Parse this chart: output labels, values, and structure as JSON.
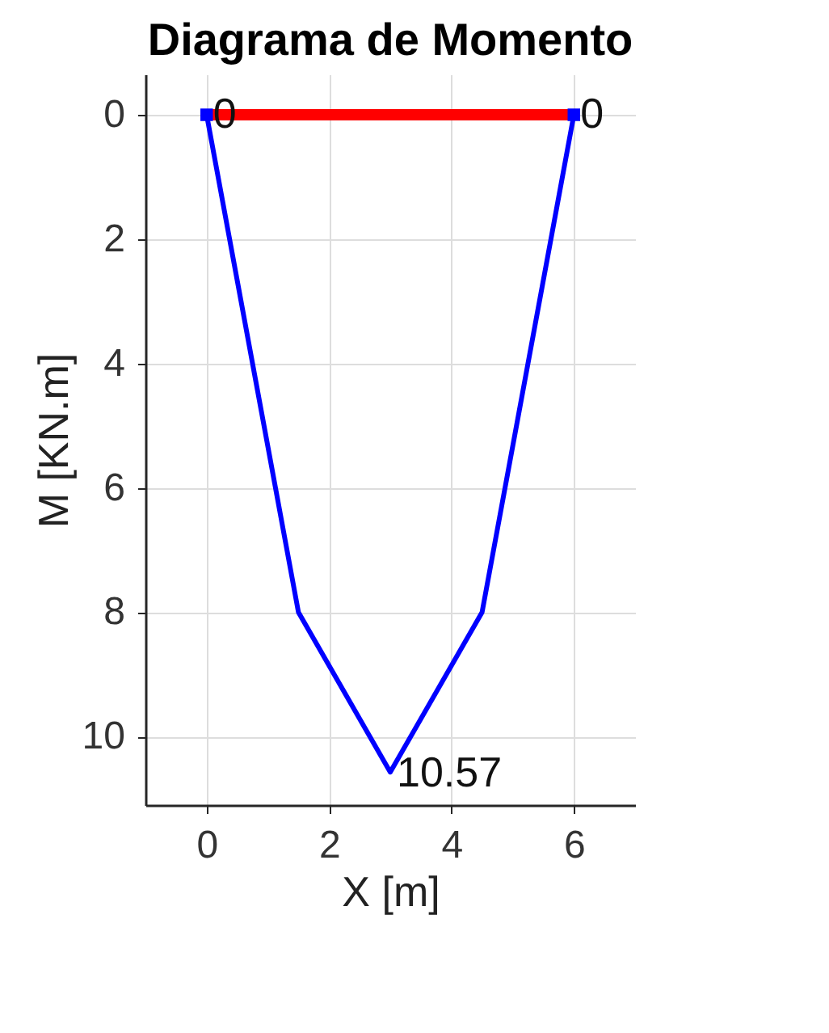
{
  "chart_data": {
    "type": "line",
    "title": "Diagrama de Momento",
    "xlabel": "X [m]",
    "ylabel": "M [KN.m]",
    "xlim": [
      -1,
      7
    ],
    "xticks": [
      0,
      2,
      4,
      6
    ],
    "ylim": [
      11.1,
      -0.65
    ],
    "yticks": [
      0,
      2,
      4,
      6,
      8,
      10
    ],
    "grid": true,
    "legend": false,
    "line_style": "solid",
    "marker": "none",
    "series": [
      {
        "color": "#ff0000",
        "x": [
          0,
          6
        ],
        "values": [
          0,
          0
        ]
      },
      {
        "color": "#0000ff",
        "x": [
          0,
          1.5,
          3,
          4.5,
          6
        ],
        "values": [
          0,
          8,
          10.57,
          8,
          0
        ]
      },
      {
        "type": "scatter",
        "color": "#0000ff",
        "marker": "square",
        "x": [
          0,
          6
        ],
        "values": [
          0,
          0
        ]
      }
    ],
    "annotations": [
      {
        "text": "0",
        "x": 0,
        "y": 0
      },
      {
        "text": "0",
        "x": 6,
        "y": 0
      },
      {
        "text": "10.57",
        "x": 3,
        "y": 10.57
      }
    ]
  }
}
